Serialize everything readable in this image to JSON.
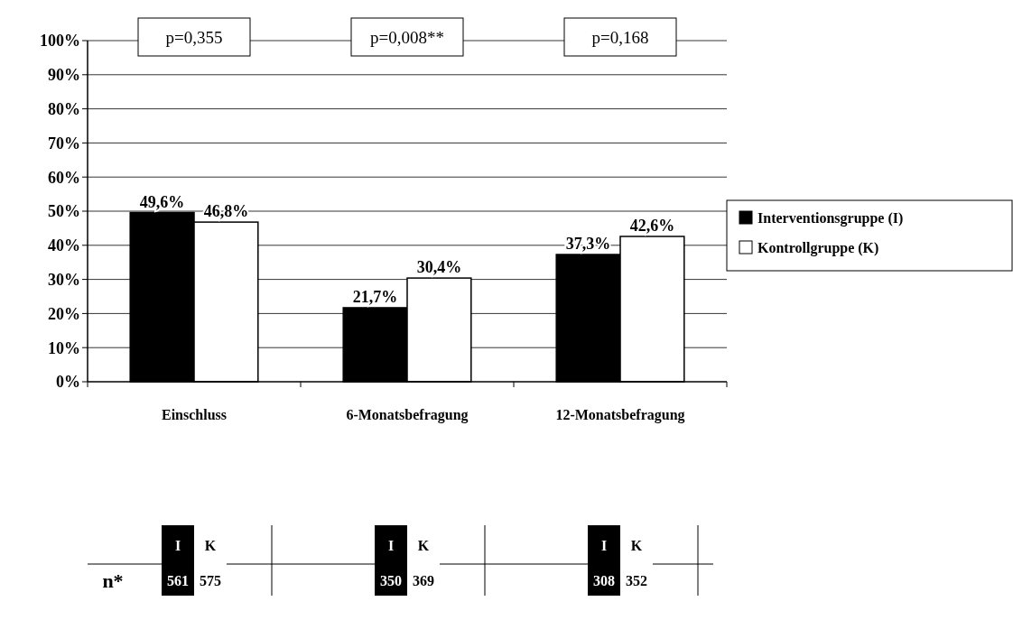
{
  "chart_data": {
    "type": "bar",
    "categories": [
      "Einschluss",
      "6-Monatsbefragung",
      "12-Monatsbefragung"
    ],
    "series": [
      {
        "name": "Interventionsgruppe (I)",
        "color": "#000000",
        "values": [
          49.6,
          21.7,
          37.3
        ],
        "value_labels": [
          "49,6%",
          "21,7%",
          "37,3%"
        ]
      },
      {
        "name": "Kontrollgruppe (K)",
        "color": "#ffffff",
        "values": [
          46.8,
          30.4,
          42.6
        ],
        "value_labels": [
          "46,8%",
          "30,4%",
          "42,6%"
        ]
      }
    ],
    "ylim": [
      0,
      100
    ],
    "yticks": [
      {
        "value": 0,
        "label": "0%"
      },
      {
        "value": 10,
        "label": "10%"
      },
      {
        "value": 20,
        "label": "20%"
      },
      {
        "value": 30,
        "label": "30%"
      },
      {
        "value": 40,
        "label": "40%"
      },
      {
        "value": 50,
        "label": "50%"
      },
      {
        "value": 60,
        "label": "60%"
      },
      {
        "value": 70,
        "label": "70%"
      },
      {
        "value": 80,
        "label": "80%"
      },
      {
        "value": 90,
        "label": "90%"
      },
      {
        "value": 100,
        "label": "100%"
      }
    ],
    "grid": "y",
    "legend": "right",
    "annotations": [
      "p=0,355",
      "p=0,008**",
      "p=0,168",
      "n*",
      "I",
      "K",
      "561",
      "575",
      "I",
      "K",
      "350",
      "369",
      "I",
      "K",
      "308",
      "352"
    ]
  }
}
